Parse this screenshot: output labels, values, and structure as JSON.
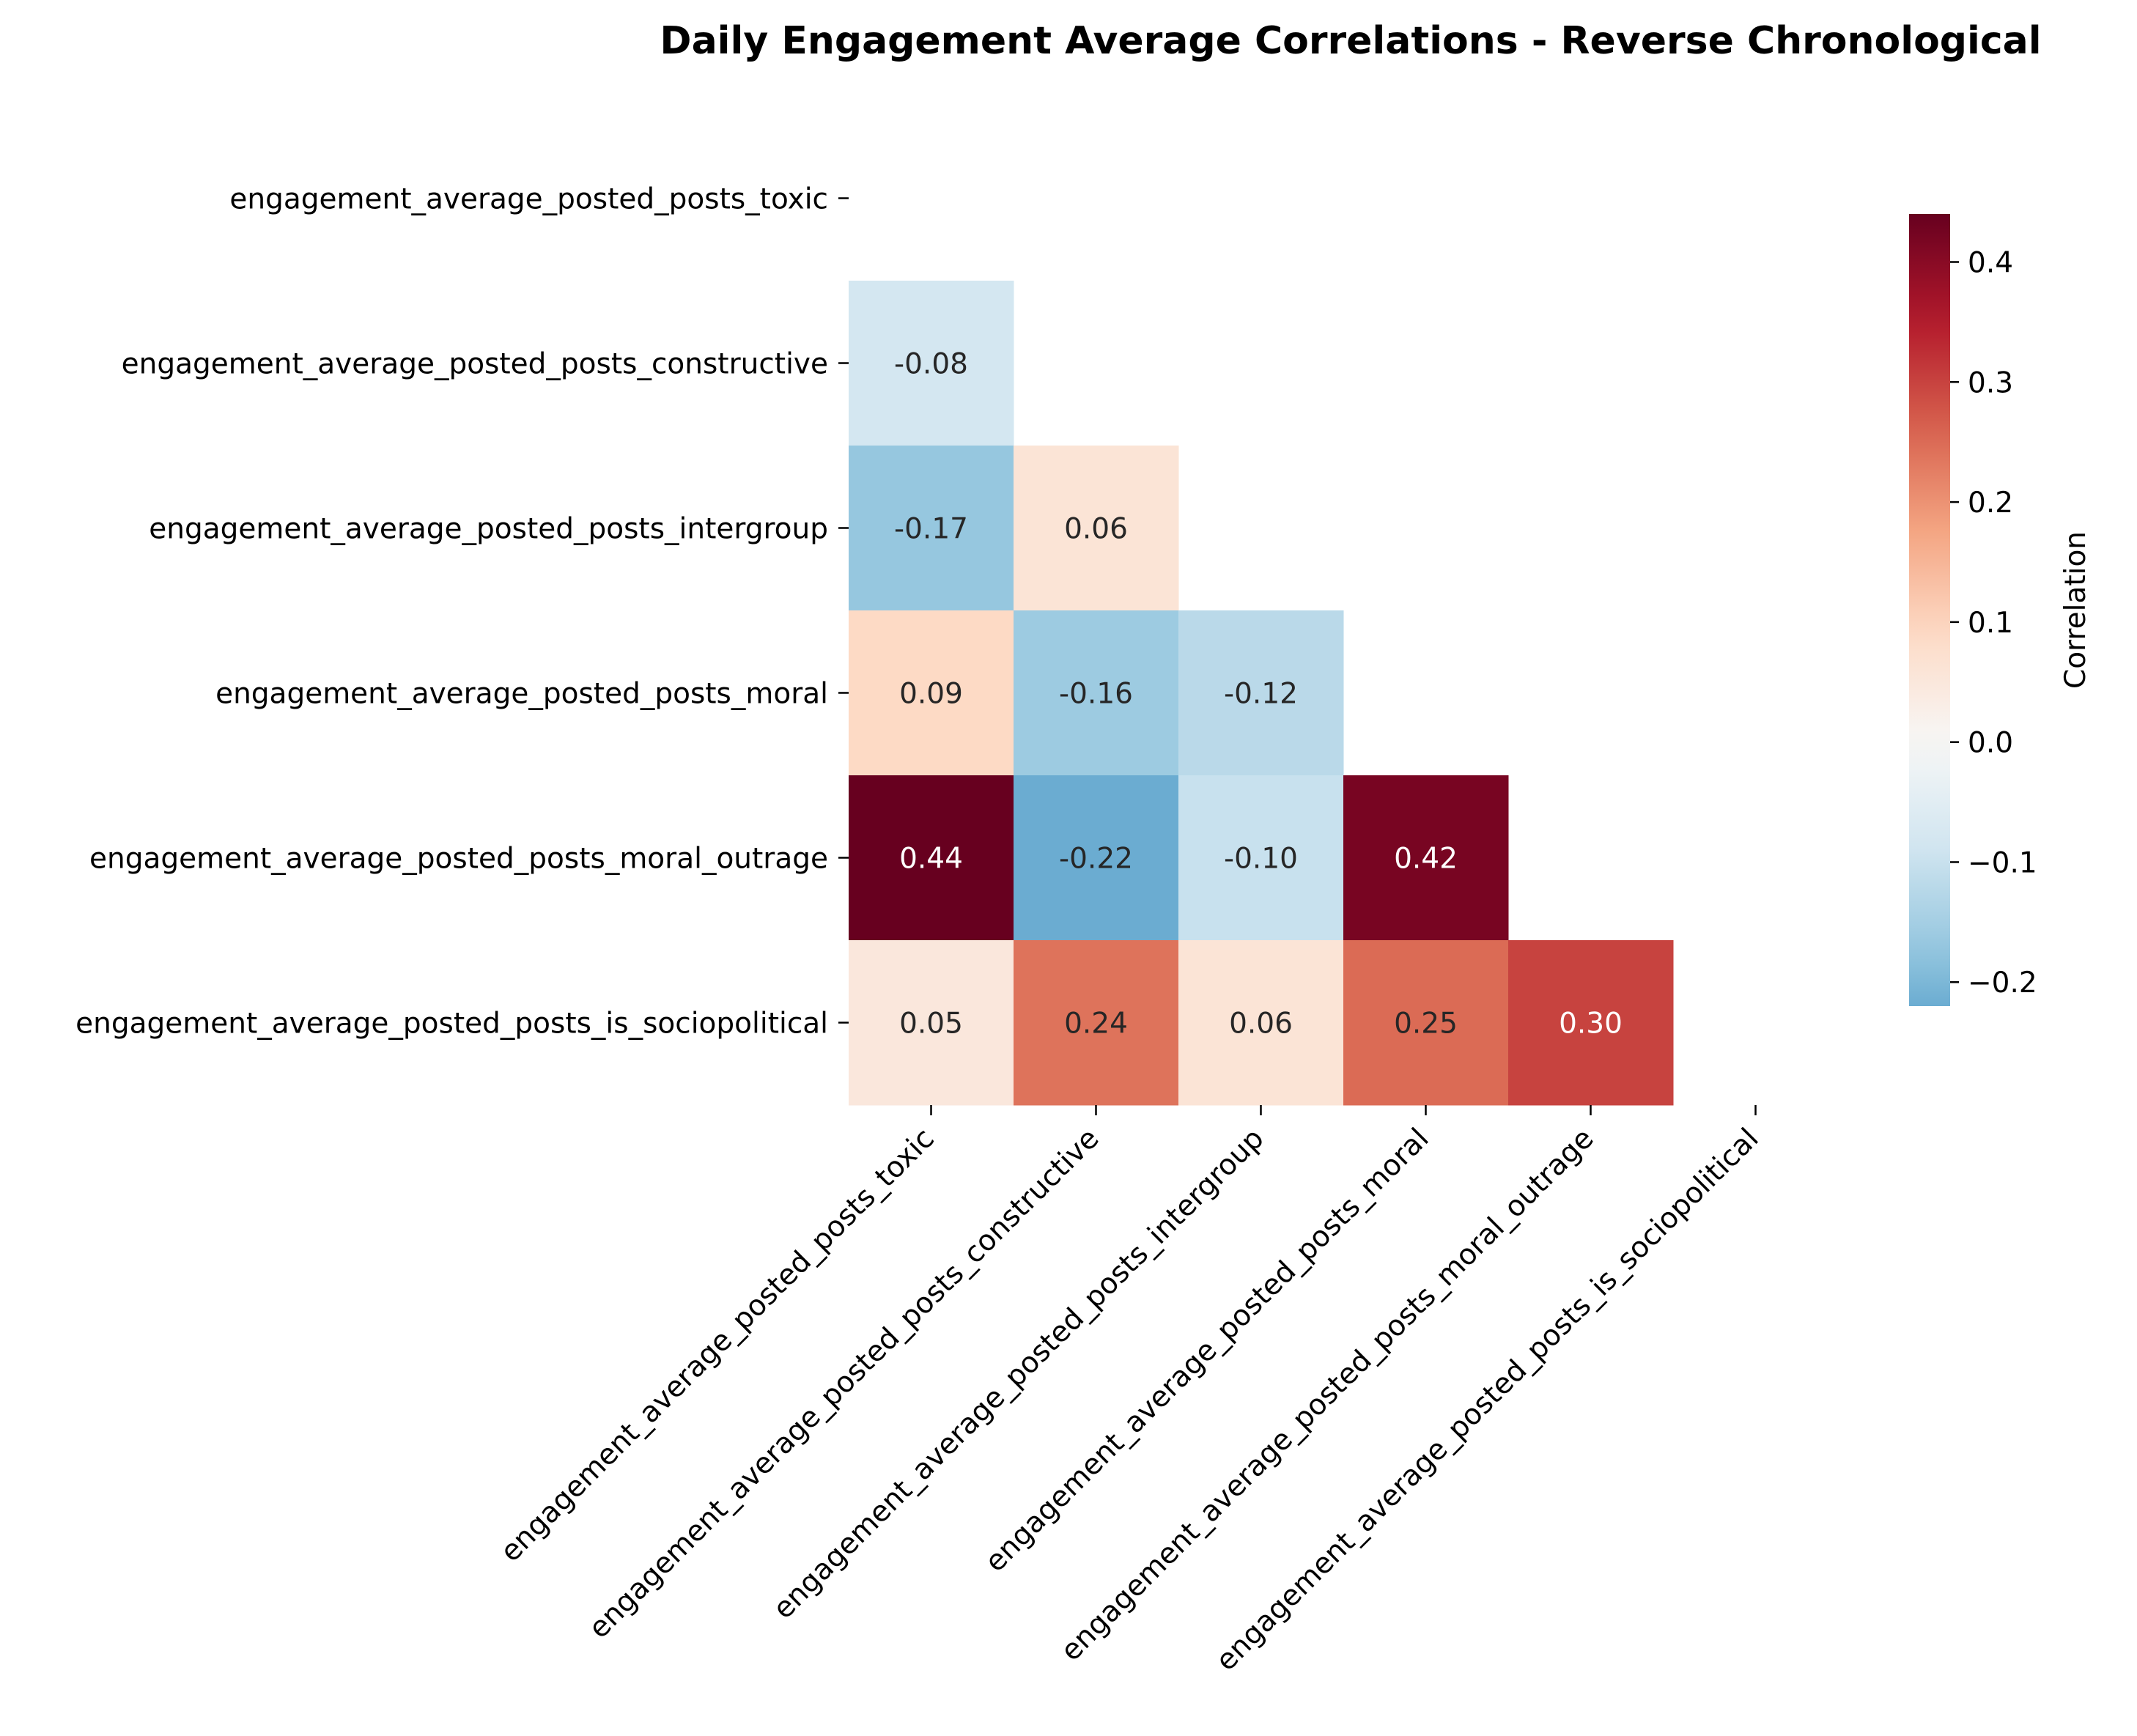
{
  "chart_data": {
    "type": "heatmap",
    "title": "Daily Engagement Average Correlations - Reverse Chronological",
    "variables": [
      "engagement_average_posted_posts_toxic",
      "engagement_average_posted_posts_constructive",
      "engagement_average_posted_posts_intergroup",
      "engagement_average_posted_posts_moral",
      "engagement_average_posted_posts_moral_outrage",
      "engagement_average_posted_posts_is_sociopolitical"
    ],
    "matrix_lower_triangle": [
      [],
      [
        -0.08
      ],
      [
        -0.17,
        0.06
      ],
      [
        0.09,
        -0.16,
        -0.12
      ],
      [
        0.44,
        -0.22,
        -0.1,
        0.42
      ],
      [
        0.05,
        0.24,
        0.06,
        0.25,
        0.3
      ]
    ],
    "value_format": "2 decimals",
    "colormap": "RdBu_r",
    "color_range": [
      -0.22,
      0.44
    ],
    "colorbar": {
      "label": "Correlation",
      "ticks": [
        "0.4",
        "0.3",
        "0.2",
        "0.1",
        "0.0",
        "−0.1",
        "−0.2"
      ],
      "tick_values": [
        0.4,
        0.3,
        0.2,
        0.1,
        0.0,
        -0.1,
        -0.2
      ]
    }
  }
}
